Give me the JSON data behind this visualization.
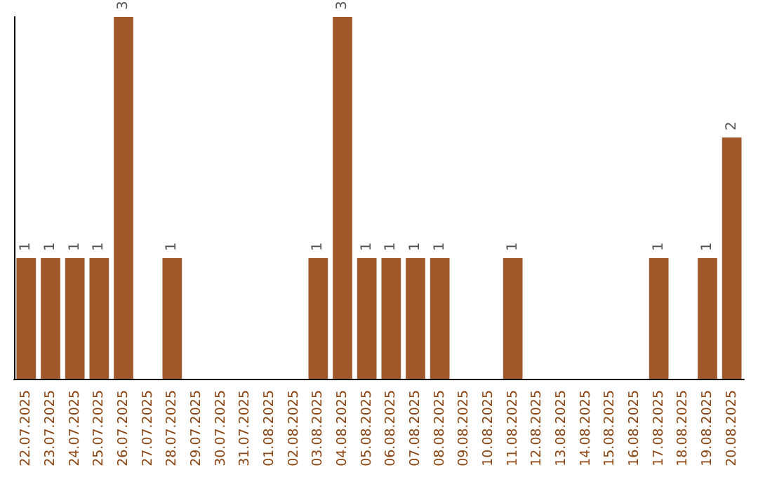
{
  "chart_data": {
    "type": "bar",
    "categories": [
      "22.07.2025",
      "23.07.2025",
      "24.07.2025",
      "25.07.2025",
      "26.07.2025",
      "27.07.2025",
      "28.07.2025",
      "29.07.2025",
      "30.07.2025",
      "31.07.2025",
      "01.08.2025",
      "02.08.2025",
      "03.08.2025",
      "04.08.2025",
      "05.08.2025",
      "06.08.2025",
      "07.08.2025",
      "08.08.2025",
      "09.08.2025",
      "10.08.2025",
      "11.08.2025",
      "12.08.2025",
      "13.08.2025",
      "14.08.2025",
      "15.08.2025",
      "16.08.2025",
      "17.08.2025",
      "18.08.2025",
      "19.08.2025",
      "20.08.2025"
    ],
    "values": [
      1,
      1,
      1,
      1,
      3,
      0,
      1,
      0,
      0,
      0,
      0,
      0,
      1,
      3,
      1,
      1,
      1,
      1,
      0,
      0,
      1,
      0,
      0,
      0,
      0,
      0,
      1,
      0,
      1,
      2
    ],
    "value_labels": [
      "1",
      "1",
      "1",
      "1",
      "3",
      null,
      "1",
      null,
      null,
      null,
      null,
      null,
      "1",
      "3",
      "1",
      "1",
      "1",
      "1",
      null,
      null,
      "1",
      null,
      null,
      null,
      null,
      null,
      "1",
      null,
      "1",
      "2"
    ],
    "color": "#a0582a",
    "tick_labels": "x"
  }
}
